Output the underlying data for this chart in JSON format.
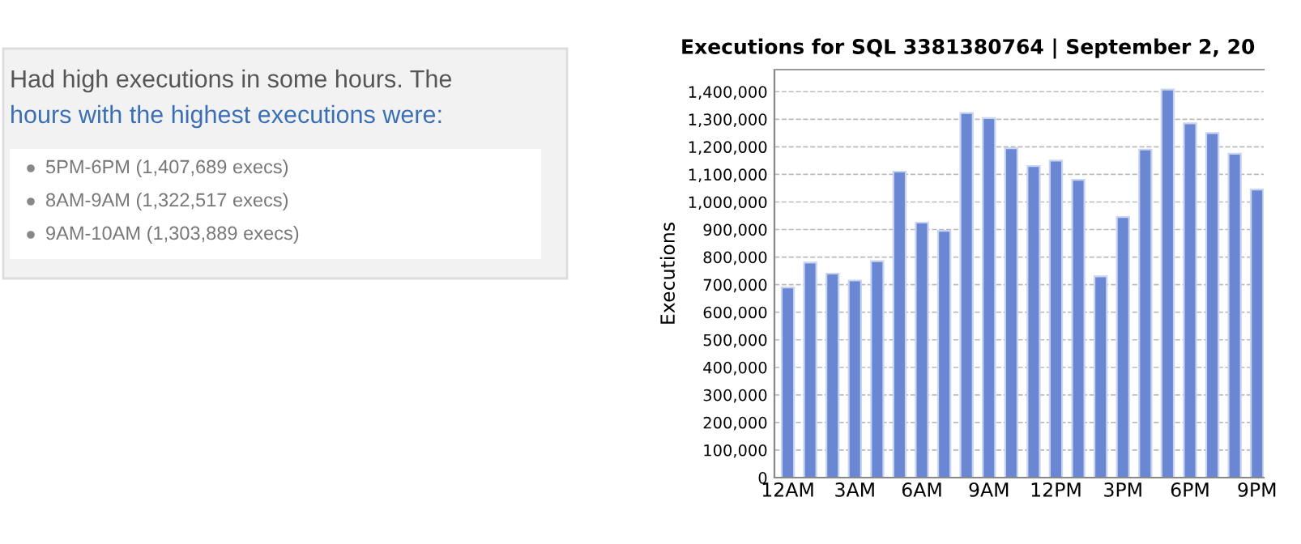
{
  "chart_data": {
    "type": "bar",
    "title": "Executions for SQL 3381380764 | September 2, 20",
    "ylabel": "Executions",
    "categories": [
      "12AM",
      null,
      null,
      "3AM",
      null,
      null,
      "6AM",
      null,
      null,
      "9AM",
      null,
      null,
      "12PM",
      null,
      null,
      "3PM",
      null,
      null,
      "6PM",
      null,
      null,
      "9PM"
    ],
    "values": [
      690000,
      780000,
      740000,
      715000,
      785000,
      1110000,
      925000,
      895000,
      1322517,
      1303889,
      1195000,
      1130000,
      1150000,
      1080000,
      730000,
      945000,
      1190000,
      1407689,
      1285000,
      1250000,
      1175000,
      1045000
    ],
    "color": "#6a87d4",
    "ylim": [
      0,
      1480000
    ],
    "yticks": [
      {
        "value": 0,
        "label": "0"
      },
      {
        "value": 100000,
        "label": "100,000"
      },
      {
        "value": 200000,
        "label": "200,000"
      },
      {
        "value": 300000,
        "label": "300,000"
      },
      {
        "value": 400000,
        "label": "400,000"
      },
      {
        "value": 500000,
        "label": "500,000"
      },
      {
        "value": 600000,
        "label": "600,000"
      },
      {
        "value": 700000,
        "label": "700,000"
      },
      {
        "value": 800000,
        "label": "800,000"
      },
      {
        "value": 900000,
        "label": "900,000"
      },
      {
        "value": 1000000,
        "label": "1,000,000"
      },
      {
        "value": 1100000,
        "label": "1,100,000"
      },
      {
        "value": 1200000,
        "label": "1,200,000"
      },
      {
        "value": 1300000,
        "label": "1,300,000"
      },
      {
        "value": 1400000,
        "label": "1,400,000"
      }
    ],
    "grid": "y",
    "annotations": [
      "Had high executions in some hours. The",
      "hours with the highest executions were:",
      "5PM-6PM (1,407,689 execs)",
      "8AM-9AM (1,322,517 execs)",
      "9AM-10AM (1,303,889 execs)"
    ]
  }
}
